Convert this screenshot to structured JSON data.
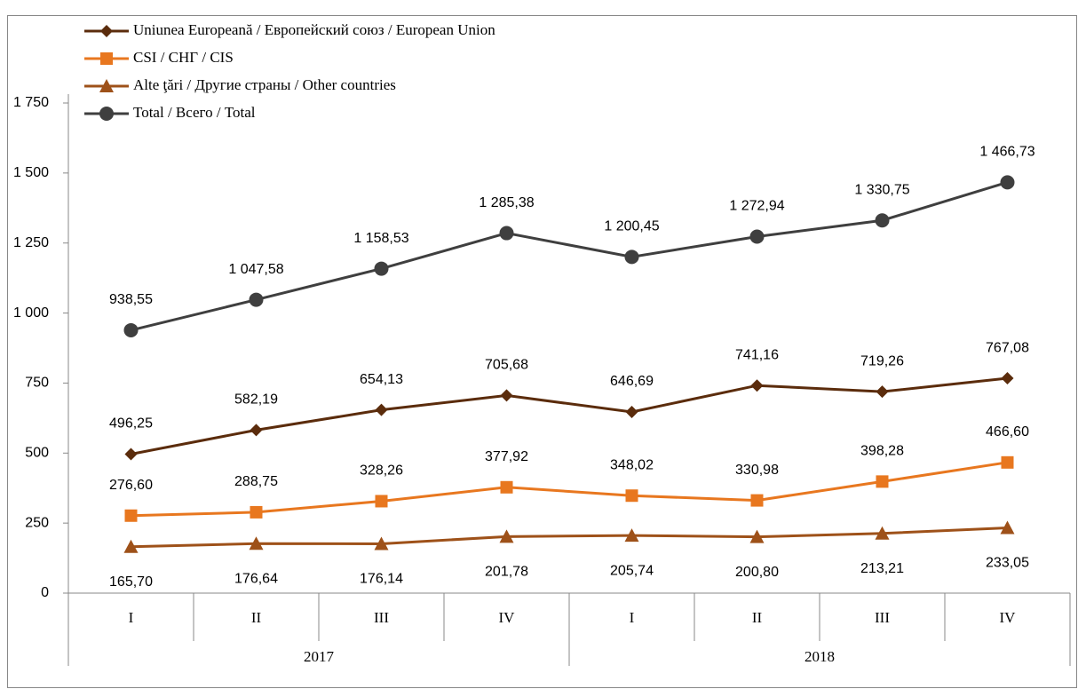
{
  "chart_data": {
    "type": "line",
    "categories": [
      "I",
      "II",
      "III",
      "IV",
      "I",
      "II",
      "III",
      "IV"
    ],
    "category_groups": [
      "2017",
      "2018"
    ],
    "ylim": [
      0,
      1750
    ],
    "yticks": [
      0,
      250,
      500,
      750,
      {
        "value": 1000,
        "label": "1 000"
      },
      {
        "value": 1250,
        "label": "1 250"
      },
      {
        "value": 1500,
        "label": "1 500"
      },
      {
        "value": 1750,
        "label": "1 750"
      }
    ],
    "legend": "top-left",
    "series": [
      {
        "name": "Uniunea Europeană / Европейский союз / European Union",
        "color": "#5b2c0c",
        "marker": "diamond",
        "label_position": "above",
        "values": [
          496.25,
          582.19,
          654.13,
          705.68,
          646.69,
          741.16,
          719.26,
          767.08
        ],
        "value_labels": [
          "496,25",
          "582,19",
          "654,13",
          "705,68",
          "646,69",
          "741,16",
          "719,26",
          "767,08"
        ]
      },
      {
        "name": "CSI / СНГ / CIS",
        "color": "#e8771f",
        "marker": "square",
        "label_position": "above",
        "values": [
          276.6,
          288.75,
          328.26,
          377.92,
          348.02,
          330.98,
          398.28,
          466.6
        ],
        "value_labels": [
          "276,60",
          "288,75",
          "328,26",
          "377,92",
          "348,02",
          "330,98",
          "398,28",
          "466,60"
        ]
      },
      {
        "name": "Alte ţări / Другие страны / Other countries",
        "color": "#9e5119",
        "marker": "triangle",
        "label_position": "below",
        "values": [
          165.7,
          176.64,
          176.14,
          201.78,
          205.74,
          200.8,
          213.21,
          233.05
        ],
        "value_labels": [
          "165,70",
          "176,64",
          "176,14",
          "201,78",
          "205,74",
          "200,80",
          "213,21",
          "233,05"
        ]
      },
      {
        "name": "Total / Всего / Total",
        "color": "#3f3f3f",
        "marker": "circle",
        "label_position": "above",
        "values": [
          938.55,
          1047.58,
          1158.53,
          1285.38,
          1200.45,
          1272.94,
          1330.75,
          1466.73
        ],
        "value_labels": [
          "938,55",
          "1 047,58",
          "1 158,53",
          "1 285,38",
          "1 200,45",
          "1 272,94",
          "1 330,75",
          "1 466,73"
        ]
      }
    ]
  }
}
